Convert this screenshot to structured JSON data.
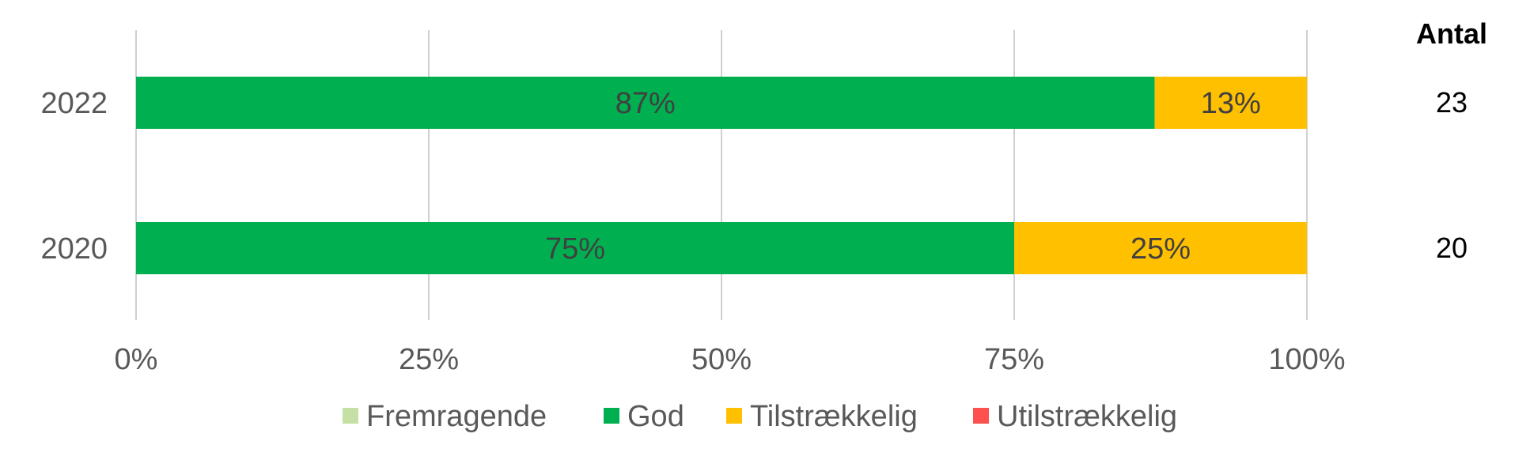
{
  "chart_data": {
    "type": "bar",
    "orientation": "horizontal",
    "stacked": true,
    "percent": true,
    "categories": [
      "2022",
      "2020"
    ],
    "series": [
      {
        "name": "Fremragende",
        "values": [
          0,
          0
        ],
        "color": "#C5E0A5"
      },
      {
        "name": "God",
        "values": [
          87,
          75
        ],
        "color": "#00B050"
      },
      {
        "name": "Tilstrækkelig",
        "values": [
          13,
          25
        ],
        "color": "#FFC000"
      },
      {
        "name": "Utilstrækkelig",
        "values": [
          0,
          0
        ],
        "color": "#FF5050"
      }
    ],
    "x_ticks": [
      "0%",
      "25%",
      "50%",
      "75%",
      "100%"
    ],
    "xlim": [
      0,
      100
    ],
    "grid": true,
    "legend_position": "bottom",
    "count_header": "Antal",
    "counts": [
      "23",
      "20"
    ]
  }
}
